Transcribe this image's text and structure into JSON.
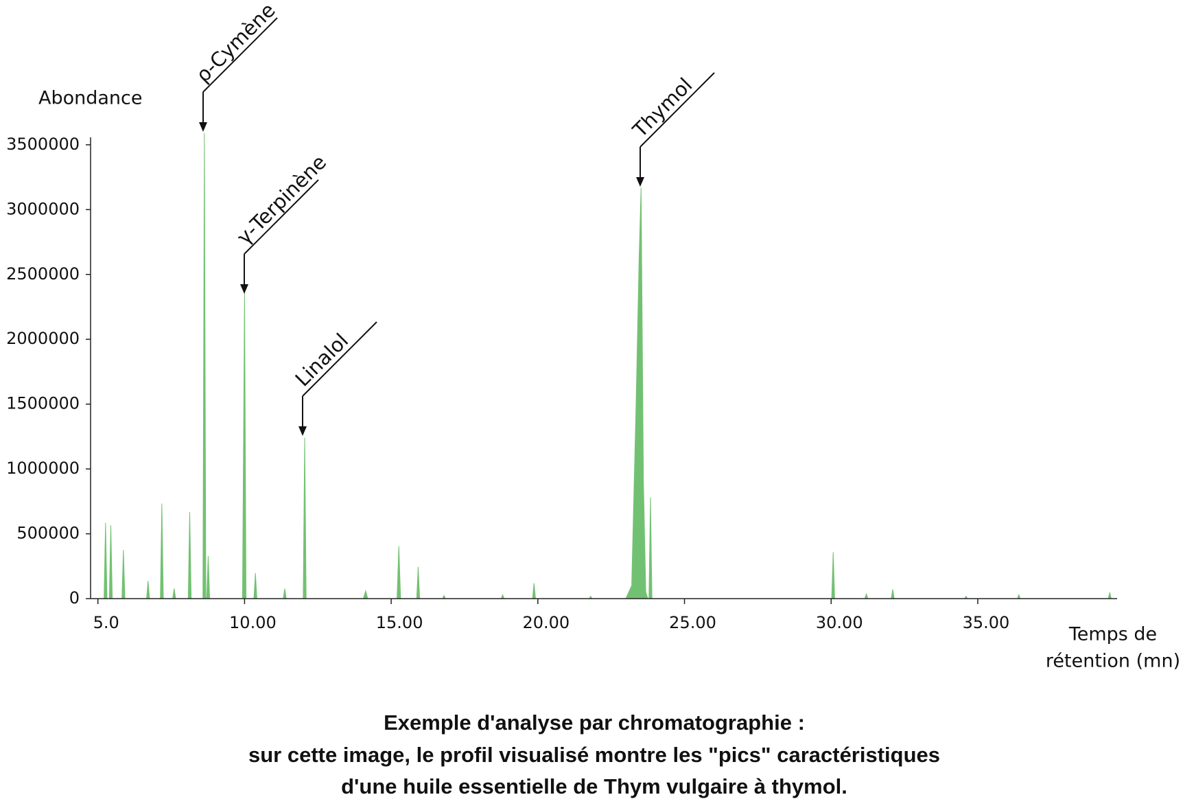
{
  "chart_data": {
    "type": "area",
    "color": "#72c172",
    "ylabel": "Abondance",
    "xlabel": [
      "Temps de",
      "rétention (mn)"
    ],
    "annotations": [
      "ρ-Cymène",
      "γ-Terpinène",
      "Linalol",
      "Thymol"
    ],
    "caption": [
      "Exemple d'analyse par chromatographie :",
      "sur cette image, le profil visualisé montre les \"pics\" caractéristiques",
      "d'une huile essentielle de Thym vulgaire à thymol."
    ],
    "xlim": [
      4.75,
      39.75
    ],
    "ylim": [
      0,
      3600000
    ],
    "xticks": [
      {
        "value": 5,
        "label": "5.0"
      },
      {
        "value": 10,
        "label": "10.00"
      },
      {
        "value": 15,
        "label": "15.00"
      },
      {
        "value": 20,
        "label": "20.00"
      },
      {
        "value": 25,
        "label": "25.00"
      },
      {
        "value": 30,
        "label": "30.00"
      },
      {
        "value": 35,
        "label": "35.00"
      }
    ],
    "yticks": [
      0,
      500000,
      1000000,
      1500000,
      2000000,
      2500000,
      3000000,
      3500000
    ],
    "x": [
      4.75,
      5.21,
      5.26,
      5.31,
      5.39,
      5.44,
      5.49,
      5.82,
      5.87,
      5.92,
      6.66,
      6.71,
      6.76,
      7.13,
      7.18,
      7.23,
      7.55,
      7.6,
      7.65,
      8.08,
      8.13,
      8.18,
      8.58,
      8.63,
      8.68,
      8.71,
      8.76,
      8.81,
      9.93,
      10.0,
      10.05,
      10.32,
      10.37,
      10.42,
      11.32,
      11.37,
      11.42,
      12.0,
      12.05,
      12.1,
      14.05,
      14.13,
      14.2,
      15.2,
      15.26,
      15.32,
      15.87,
      15.92,
      15.97,
      16.75,
      16.8,
      16.85,
      18.75,
      18.8,
      18.85,
      19.82,
      19.87,
      19.92,
      21.75,
      21.8,
      21.85,
      23.0,
      23.2,
      23.35,
      23.45,
      23.52,
      23.6,
      23.68,
      23.75,
      23.79,
      23.84,
      23.89,
      30.02,
      30.07,
      30.12,
      31.15,
      31.2,
      31.25,
      32.05,
      32.1,
      32.15,
      34.55,
      34.6,
      34.65,
      36.35,
      36.4,
      36.45,
      39.45,
      39.5,
      39.55,
      39.75
    ],
    "values": [
      0,
      0,
      584000,
      0,
      0,
      566000,
      0,
      0,
      376000,
      0,
      0,
      137000,
      0,
      0,
      733000,
      0,
      0,
      78000,
      0,
      0,
      668000,
      0,
      0,
      3590000,
      0,
      0,
      328000,
      0,
      0,
      2367000,
      0,
      0,
      197000,
      0,
      0,
      78000,
      0,
      0,
      1240000,
      0,
      0,
      60000,
      0,
      0,
      405000,
      0,
      0,
      245000,
      0,
      0,
      24000,
      0,
      0,
      30000,
      0,
      0,
      119000,
      0,
      0,
      18000,
      0,
      0,
      100000,
      1500000,
      2600000,
      3170000,
      900000,
      50000,
      0,
      0,
      781000,
      0,
      0,
      358000,
      0,
      0,
      36000,
      0,
      0,
      72000,
      0,
      0,
      18000,
      0,
      0,
      30000,
      0,
      0,
      48000,
      0,
      0
    ]
  }
}
